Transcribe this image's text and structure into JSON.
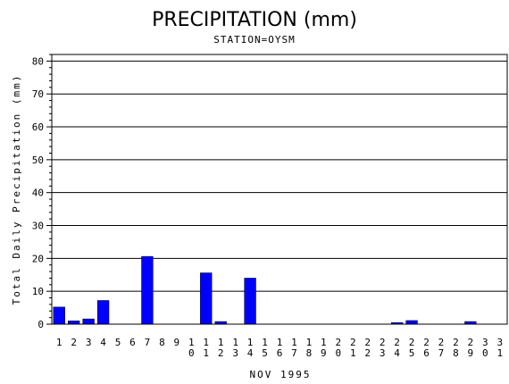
{
  "chart_data": {
    "type": "bar",
    "title": "PRECIPITATION (mm)",
    "subtitle": "STATION=OYSM",
    "xlabel": "NOV 1995",
    "ylabel": "Total Daily Precipitation (mm)",
    "ylim": [
      0,
      82
    ],
    "yticks": [
      0,
      10,
      20,
      30,
      40,
      50,
      60,
      70,
      80
    ],
    "grid": true,
    "bar_color": "#0000ff",
    "categories": [
      "1",
      "2",
      "3",
      "4",
      "5",
      "6",
      "7",
      "8",
      "9",
      "10",
      "11",
      "12",
      "13",
      "14",
      "15",
      "16",
      "17",
      "18",
      "19",
      "20",
      "21",
      "22",
      "23",
      "24",
      "25",
      "26",
      "27",
      "28",
      "29",
      "30",
      "31"
    ],
    "values": [
      5.2,
      1.0,
      1.6,
      7.2,
      0,
      0,
      20.6,
      0,
      0,
      0,
      15.6,
      0.8,
      0,
      14.0,
      0,
      0,
      0,
      0,
      0,
      0,
      0,
      0,
      0,
      0.5,
      1.1,
      0,
      0,
      0,
      0.8,
      0,
      0
    ]
  }
}
